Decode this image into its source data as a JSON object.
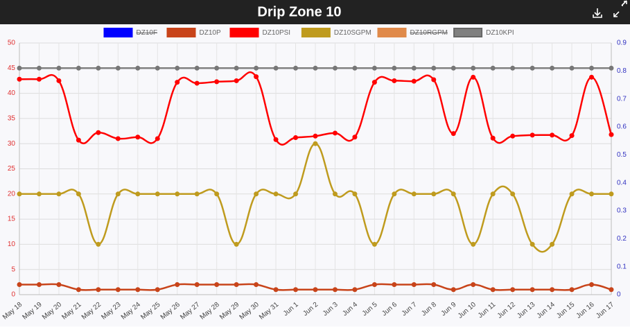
{
  "chart_data": {
    "type": "line",
    "title": "Drip Zone 10",
    "categories": [
      "May 18",
      "May 19",
      "May 20",
      "May 21",
      "May 22",
      "May 23",
      "May 24",
      "May 25",
      "May 26",
      "May 27",
      "May 28",
      "May 29",
      "May 30",
      "May 31",
      "Jun 1",
      "Jun 2",
      "Jun 3",
      "Jun 4",
      "Jun 5",
      "Jun 6",
      "Jun 7",
      "Jun 8",
      "Jun 9",
      "Jun 10",
      "Jun 11",
      "Jun 12",
      "Jun 13",
      "Jun 14",
      "Jun 15",
      "Jun 16",
      "Jun 17"
    ],
    "series": [
      {
        "name": "DZ10F",
        "color": "#0000ff",
        "hidden": true
      },
      {
        "name": "DZ10P",
        "color": "#c8441a",
        "values": [
          2,
          2,
          2,
          1,
          1,
          1,
          1,
          1,
          2,
          2,
          2,
          2,
          2,
          1,
          1,
          1,
          1,
          1,
          2,
          2,
          2,
          2,
          1,
          2,
          1,
          1,
          1,
          1,
          1,
          2,
          1
        ]
      },
      {
        "name": "DZ10PSI",
        "color": "#ff0000",
        "values": [
          42.8,
          42.8,
          42.5,
          30.7,
          32.2,
          31,
          31.3,
          31,
          42.2,
          42,
          42.3,
          42.5,
          43.3,
          30.8,
          31.2,
          31.5,
          32.1,
          31.3,
          42.2,
          42.5,
          42.4,
          42.7,
          32,
          43.2,
          31.1,
          31.5,
          31.7,
          31.7,
          31.6,
          43.2,
          31.8
        ]
      },
      {
        "name": "DZ10SGPM",
        "color": "#bf9b1e",
        "values": [
          20,
          20,
          20,
          20,
          10,
          20,
          20,
          20,
          20,
          20,
          20,
          10,
          20,
          20,
          20,
          30,
          20,
          20,
          10,
          20,
          20,
          20,
          20,
          10,
          20,
          20,
          10,
          10,
          20,
          20,
          20
        ]
      },
      {
        "name": "DZ10RGPM",
        "color": "#e08a4a",
        "hidden": true
      },
      {
        "name": "DZ10KPI",
        "color": "#808080",
        "values": [
          45,
          45,
          45,
          45,
          45,
          45,
          45,
          45,
          45,
          45,
          45,
          45,
          45,
          45,
          45,
          45,
          45,
          45,
          45,
          45,
          45,
          45,
          45,
          45,
          45,
          45,
          45,
          45,
          45,
          45,
          45
        ]
      }
    ],
    "ylim": [
      0,
      50
    ],
    "yticks": [
      0,
      5,
      10,
      15,
      20,
      25,
      30,
      35,
      40,
      45,
      50
    ],
    "y2lim": [
      0,
      0.9
    ],
    "y2ticks": [
      0,
      0.1,
      0.2,
      0.3,
      0.4,
      0.5,
      0.6,
      0.7,
      0.8,
      0.9
    ],
    "grid": true,
    "legend": "top"
  }
}
